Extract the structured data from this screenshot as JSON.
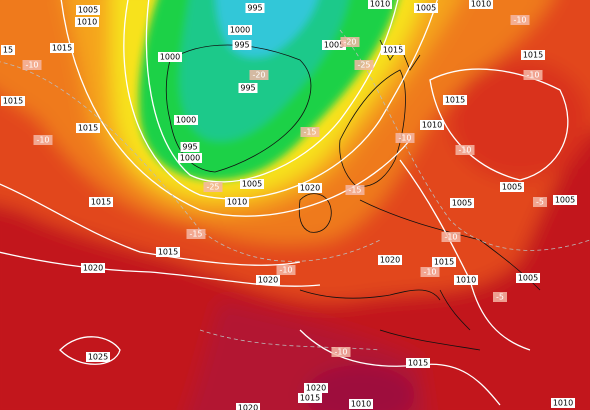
{
  "isobar_labels": [
    "1005",
    "1010",
    "995",
    "1000",
    "995",
    "1000",
    "995",
    "1000",
    "995",
    "1000",
    "1005",
    "1010",
    "1015",
    "1015",
    "1015",
    "1015",
    "1015",
    "1020",
    "1020",
    "1025",
    "1020",
    "1005",
    "1010",
    "1005",
    "1010",
    "1015",
    "1015",
    "1015",
    "1010",
    "1005",
    "1005",
    "1005",
    "1020",
    "1015",
    "1010",
    "1005",
    "1015",
    "1020",
    "1015",
    "1010",
    "1010",
    "1020",
    "15"
  ],
  "temperature_labels": [
    "-10",
    "-10",
    "-10",
    "-10",
    "-10",
    "-15",
    "-15",
    "-15",
    "-20",
    "-25",
    "-25",
    "-20",
    "-10",
    "-10",
    "-10",
    "-10",
    "-5",
    "-5",
    "-10"
  ]
}
